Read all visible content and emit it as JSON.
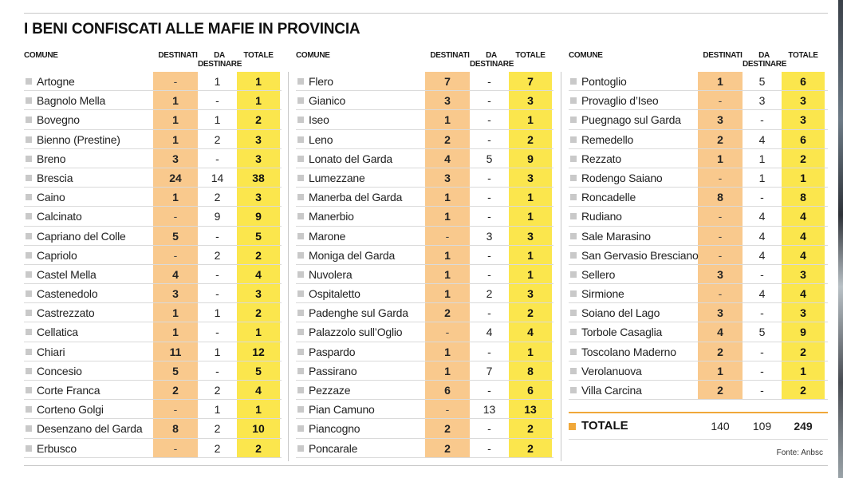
{
  "title": "I BENI CONFISCATI ALLE MAFIE IN PROVINCIA",
  "headers": {
    "comune": "COMUNE",
    "destinati": "DESTINATI",
    "da_destinare_1": "DA",
    "da_destinare_2": "DESTINARE",
    "totale": "TOTALE"
  },
  "colors": {
    "destinati_col": "#f9c98d",
    "totale_col": "#fbe64d",
    "accent": "#f0a83a"
  },
  "chart_data": {
    "type": "table",
    "title": "I BENI CONFISCATI ALLE MAFIE IN PROVINCIA",
    "columns": [
      "COMUNE",
      "DESTINATI",
      "DA DESTINARE",
      "TOTALE"
    ],
    "panels": [
      {
        "rows": [
          {
            "comune": "Artogne",
            "destinati": "-",
            "da_destinare": "1",
            "totale": "1"
          },
          {
            "comune": "Bagnolo Mella",
            "destinati": "1",
            "da_destinare": "-",
            "totale": "1"
          },
          {
            "comune": "Bovegno",
            "destinati": "1",
            "da_destinare": "1",
            "totale": "2"
          },
          {
            "comune": "Bienno (Prestine)",
            "destinati": "1",
            "da_destinare": "2",
            "totale": "3"
          },
          {
            "comune": "Breno",
            "destinati": "3",
            "da_destinare": "-",
            "totale": "3"
          },
          {
            "comune": "Brescia",
            "destinati": "24",
            "da_destinare": "14",
            "totale": "38"
          },
          {
            "comune": "Caino",
            "destinati": "1",
            "da_destinare": "2",
            "totale": "3"
          },
          {
            "comune": "Calcinato",
            "destinati": "-",
            "da_destinare": "9",
            "totale": "9"
          },
          {
            "comune": "Capriano del Colle",
            "destinati": "5",
            "da_destinare": "-",
            "totale": "5"
          },
          {
            "comune": "Capriolo",
            "destinati": "-",
            "da_destinare": "2",
            "totale": "2"
          },
          {
            "comune": "Castel Mella",
            "destinati": "4",
            "da_destinare": "-",
            "totale": "4"
          },
          {
            "comune": "Castenedolo",
            "destinati": "3",
            "da_destinare": "-",
            "totale": "3"
          },
          {
            "comune": "Castrezzato",
            "destinati": "1",
            "da_destinare": "1",
            "totale": "2"
          },
          {
            "comune": "Cellatica",
            "destinati": "1",
            "da_destinare": "-",
            "totale": "1"
          },
          {
            "comune": "Chiari",
            "destinati": "11",
            "da_destinare": "1",
            "totale": "12"
          },
          {
            "comune": "Concesio",
            "destinati": "5",
            "da_destinare": "-",
            "totale": "5"
          },
          {
            "comune": "Corte Franca",
            "destinati": "2",
            "da_destinare": "2",
            "totale": "4"
          },
          {
            "comune": "Corteno Golgi",
            "destinati": "-",
            "da_destinare": "1",
            "totale": "1"
          },
          {
            "comune": "Desenzano del Garda",
            "destinati": "8",
            "da_destinare": "2",
            "totale": "10"
          },
          {
            "comune": "Erbusco",
            "destinati": "-",
            "da_destinare": "2",
            "totale": "2"
          }
        ]
      },
      {
        "rows": [
          {
            "comune": "Flero",
            "destinati": "7",
            "da_destinare": "-",
            "totale": "7"
          },
          {
            "comune": "Gianico",
            "destinati": "3",
            "da_destinare": "-",
            "totale": "3"
          },
          {
            "comune": "Iseo",
            "destinati": "1",
            "da_destinare": "-",
            "totale": "1"
          },
          {
            "comune": "Leno",
            "destinati": "2",
            "da_destinare": "-",
            "totale": "2"
          },
          {
            "comune": "Lonato del Garda",
            "destinati": "4",
            "da_destinare": "5",
            "totale": "9"
          },
          {
            "comune": "Lumezzane",
            "destinati": "3",
            "da_destinare": "-",
            "totale": "3"
          },
          {
            "comune": "Manerba del Garda",
            "destinati": "1",
            "da_destinare": "-",
            "totale": "1"
          },
          {
            "comune": "Manerbio",
            "destinati": "1",
            "da_destinare": "-",
            "totale": "1"
          },
          {
            "comune": "Marone",
            "destinati": "-",
            "da_destinare": "3",
            "totale": "3"
          },
          {
            "comune": "Moniga del Garda",
            "destinati": "1",
            "da_destinare": "-",
            "totale": "1"
          },
          {
            "comune": "Nuvolera",
            "destinati": "1",
            "da_destinare": "-",
            "totale": "1"
          },
          {
            "comune": "Ospitaletto",
            "destinati": "1",
            "da_destinare": "2",
            "totale": "3"
          },
          {
            "comune": "Padenghe sul Garda",
            "destinati": "2",
            "da_destinare": "-",
            "totale": "2"
          },
          {
            "comune": "Palazzolo sull’Oglio",
            "destinati": "-",
            "da_destinare": "4",
            "totale": "4"
          },
          {
            "comune": "Paspardo",
            "destinati": "1",
            "da_destinare": "-",
            "totale": "1"
          },
          {
            "comune": "Passirano",
            "destinati": "1",
            "da_destinare": "7",
            "totale": "8"
          },
          {
            "comune": "Pezzaze",
            "destinati": "6",
            "da_destinare": "-",
            "totale": "6"
          },
          {
            "comune": "Pian Camuno",
            "destinati": "-",
            "da_destinare": "13",
            "totale": "13"
          },
          {
            "comune": "Piancogno",
            "destinati": "2",
            "da_destinare": "-",
            "totale": "2"
          },
          {
            "comune": "Poncarale",
            "destinati": "2",
            "da_destinare": "-",
            "totale": "2"
          }
        ]
      },
      {
        "rows": [
          {
            "comune": "Pontoglio",
            "destinati": "1",
            "da_destinare": "5",
            "totale": "6"
          },
          {
            "comune": "Provaglio d’Iseo",
            "destinati": "-",
            "da_destinare": "3",
            "totale": "3"
          },
          {
            "comune": "Puegnago sul Garda",
            "destinati": "3",
            "da_destinare": "-",
            "totale": "3"
          },
          {
            "comune": "Remedello",
            "destinati": "2",
            "da_destinare": "4",
            "totale": "6"
          },
          {
            "comune": "Rezzato",
            "destinati": "1",
            "da_destinare": "1",
            "totale": "2"
          },
          {
            "comune": "Rodengo Saiano",
            "destinati": "-",
            "da_destinare": "1",
            "totale": "1"
          },
          {
            "comune": "Roncadelle",
            "destinati": "8",
            "da_destinare": "-",
            "totale": "8"
          },
          {
            "comune": "Rudiano",
            "destinati": "-",
            "da_destinare": "4",
            "totale": "4"
          },
          {
            "comune": "Sale Marasino",
            "destinati": "-",
            "da_destinare": "4",
            "totale": "4"
          },
          {
            "comune": "San Gervasio Bresciano",
            "destinati": "-",
            "da_destinare": "4",
            "totale": "4"
          },
          {
            "comune": "Sellero",
            "destinati": "3",
            "da_destinare": "-",
            "totale": "3"
          },
          {
            "comune": "Sirmione",
            "destinati": "-",
            "da_destinare": "4",
            "totale": "4"
          },
          {
            "comune": "Soiano del Lago",
            "destinati": "3",
            "da_destinare": "-",
            "totale": "3"
          },
          {
            "comune": "Torbole Casaglia",
            "destinati": "4",
            "da_destinare": "5",
            "totale": "9"
          },
          {
            "comune": "Toscolano Maderno",
            "destinati": "2",
            "da_destinare": "-",
            "totale": "2"
          },
          {
            "comune": "Verolanuova",
            "destinati": "1",
            "da_destinare": "-",
            "totale": "1"
          },
          {
            "comune": "Villa Carcina",
            "destinati": "2",
            "da_destinare": "-",
            "totale": "2"
          }
        ]
      }
    ],
    "totals": {
      "label": "TOTALE",
      "destinati": "140",
      "da_destinare": "109",
      "totale": "249"
    }
  },
  "source": "Fonte: Anbsc"
}
